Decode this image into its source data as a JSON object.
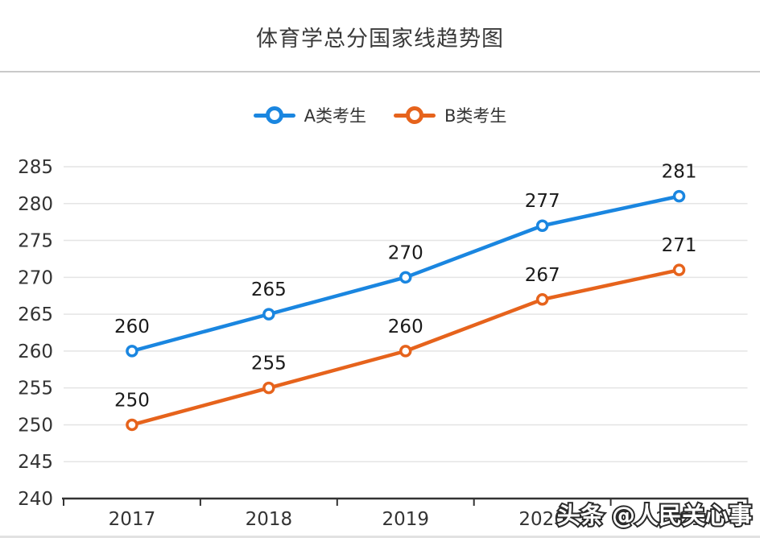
{
  "page": {
    "background": "#ffffff",
    "divider_color": "#c9c9c9",
    "watermark": "头条 @人民关心事"
  },
  "chart_data": {
    "type": "line",
    "title": "体育学总分国家线趋势图",
    "categories": [
      "2017",
      "2018",
      "2019",
      "2020",
      "2021"
    ],
    "series": [
      {
        "name": "A类考生",
        "color": "#1a86e0",
        "values": [
          260,
          265,
          270,
          277,
          281
        ]
      },
      {
        "name": "B类考生",
        "color": "#e6631c",
        "values": [
          250,
          255,
          260,
          267,
          271
        ]
      }
    ],
    "ylim": [
      240,
      285
    ],
    "yticks": [
      240,
      245,
      250,
      255,
      260,
      265,
      270,
      275,
      280,
      285
    ],
    "grid": true,
    "legend_position": "top",
    "data_labels": true,
    "colors": {
      "axis": "#333333",
      "gridline": "#e4e4e4",
      "tick_label": "#333333",
      "data_label": "#1a1a1a",
      "watermark_fill": "#ffffff",
      "watermark_stroke": "#2b2b2b"
    }
  }
}
